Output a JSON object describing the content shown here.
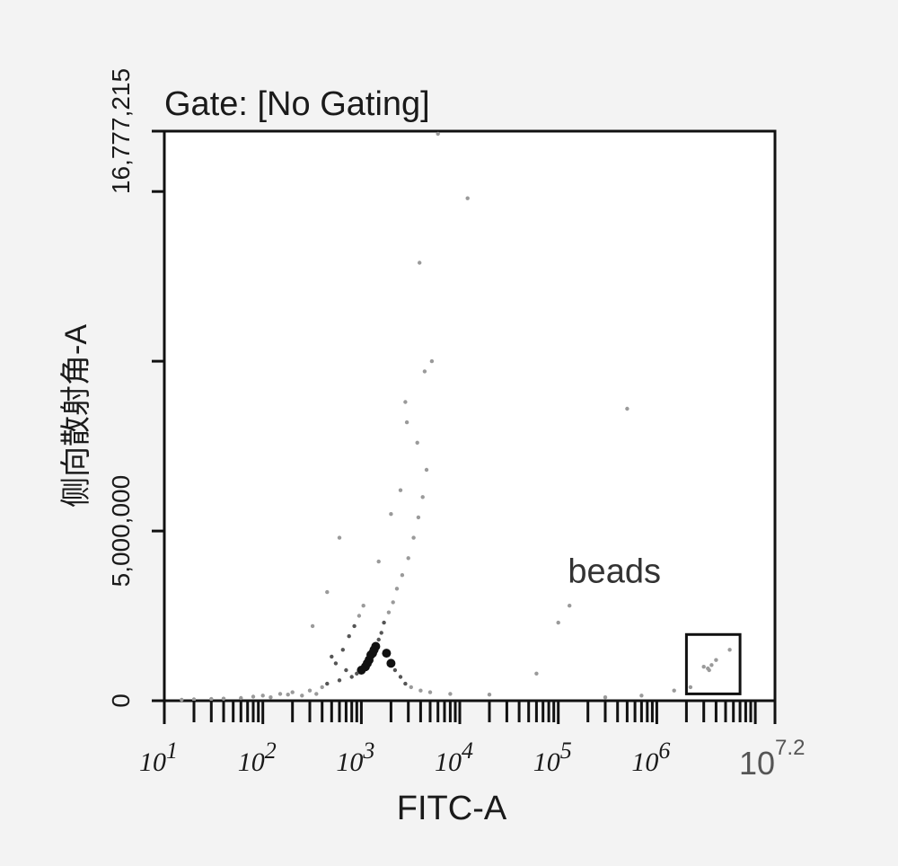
{
  "chart_data": {
    "type": "scatter",
    "title": "Gate: [No Gating]",
    "xlabel": "FITC-A",
    "ylabel": "侧向散射角-A",
    "xscale": "log",
    "xlim": [
      10,
      15848932
    ],
    "ylim": [
      0,
      16777215
    ],
    "x_tick_labels": [
      {
        "value": 10,
        "base": "10",
        "exp": "1"
      },
      {
        "value": 100,
        "base": "10",
        "exp": "2"
      },
      {
        "value": 1000,
        "base": "10",
        "exp": "3"
      },
      {
        "value": 10000,
        "base": "10",
        "exp": "4"
      },
      {
        "value": 100000,
        "base": "10",
        "exp": "5"
      },
      {
        "value": 1000000,
        "base": "10",
        "exp": "6"
      },
      {
        "value": 15848932,
        "base": "10",
        "exp": "7.2"
      }
    ],
    "y_tick_labels": [
      {
        "value": 0,
        "label": "0"
      },
      {
        "value": 5000000,
        "label": "5,000,000"
      },
      {
        "value": 16777215,
        "label": "16,777,215"
      }
    ],
    "y_minor_ticks": [
      10000000,
      15000000
    ],
    "grid": false,
    "legend": "none",
    "gate": {
      "label": "beads",
      "x_range": [
        2000000,
        7000000
      ],
      "y_range": [
        200000,
        1950000
      ]
    },
    "population": {
      "main_cluster_center": [
        1200,
        1250000
      ],
      "points": [
        [
          1200,
          1200000
        ],
        [
          1100,
          1000000
        ],
        [
          1300,
          1400000
        ],
        [
          1000,
          900000
        ],
        [
          1400,
          1600000
        ],
        [
          900,
          800000
        ],
        [
          1500,
          1800000
        ],
        [
          1250,
          1350000
        ],
        [
          1150,
          1100000
        ],
        [
          1350,
          1500000
        ],
        [
          800,
          700000
        ],
        [
          1600,
          2000000
        ],
        [
          1700,
          2300000
        ],
        [
          1900,
          2600000
        ],
        [
          2100,
          2900000
        ],
        [
          2300,
          3300000
        ],
        [
          2600,
          3700000
        ],
        [
          3000,
          4200000
        ],
        [
          3400,
          4800000
        ],
        [
          3800,
          5400000
        ],
        [
          4200,
          6000000
        ],
        [
          4600,
          6800000
        ],
        [
          3700,
          7600000
        ],
        [
          2900,
          8200000
        ],
        [
          4400,
          9700000
        ],
        [
          3900,
          12900000
        ],
        [
          5200,
          10000000
        ],
        [
          12000,
          14800000
        ],
        [
          6000,
          16700000
        ],
        [
          2800,
          8800000
        ],
        [
          500,
          1300000
        ],
        [
          700,
          900000
        ],
        [
          600,
          600000
        ],
        [
          400,
          400000
        ],
        [
          300,
          300000
        ],
        [
          200,
          250000
        ],
        [
          150,
          200000
        ],
        [
          100,
          150000
        ],
        [
          80,
          120000
        ],
        [
          60,
          80000
        ],
        [
          40,
          60000
        ],
        [
          30,
          50000
        ],
        [
          20,
          40000
        ],
        [
          15,
          30000
        ],
        [
          120,
          100000
        ],
        [
          180,
          180000
        ],
        [
          250,
          150000
        ],
        [
          350,
          200000
        ],
        [
          450,
          500000
        ],
        [
          550,
          1100000
        ],
        [
          650,
          1500000
        ],
        [
          750,
          1900000
        ],
        [
          850,
          2200000
        ],
        [
          950,
          2500000
        ],
        [
          1050,
          2800000
        ],
        [
          1800,
          1400000
        ],
        [
          2000,
          1100000
        ],
        [
          2200,
          900000
        ],
        [
          2500,
          700000
        ],
        [
          2800,
          500000
        ],
        [
          3200,
          400000
        ],
        [
          4000,
          300000
        ],
        [
          5000,
          250000
        ],
        [
          8000,
          200000
        ],
        [
          20000,
          180000
        ],
        [
          60000,
          800000
        ],
        [
          100000,
          2300000
        ],
        [
          130000,
          2800000
        ],
        [
          500000,
          8600000
        ],
        [
          300000,
          100000
        ],
        [
          700000,
          150000
        ],
        [
          1500000,
          300000
        ],
        [
          2200000,
          400000
        ],
        [
          3000000,
          1000000
        ],
        [
          3300000,
          950000
        ],
        [
          3600000,
          1050000
        ],
        [
          3400000,
          900000
        ],
        [
          4000000,
          1200000
        ],
        [
          5500000,
          1500000
        ],
        [
          450,
          3200000
        ],
        [
          320,
          2200000
        ],
        [
          600,
          4800000
        ],
        [
          2500,
          6200000
        ],
        [
          2000,
          5500000
        ],
        [
          1500,
          4100000
        ]
      ]
    }
  }
}
